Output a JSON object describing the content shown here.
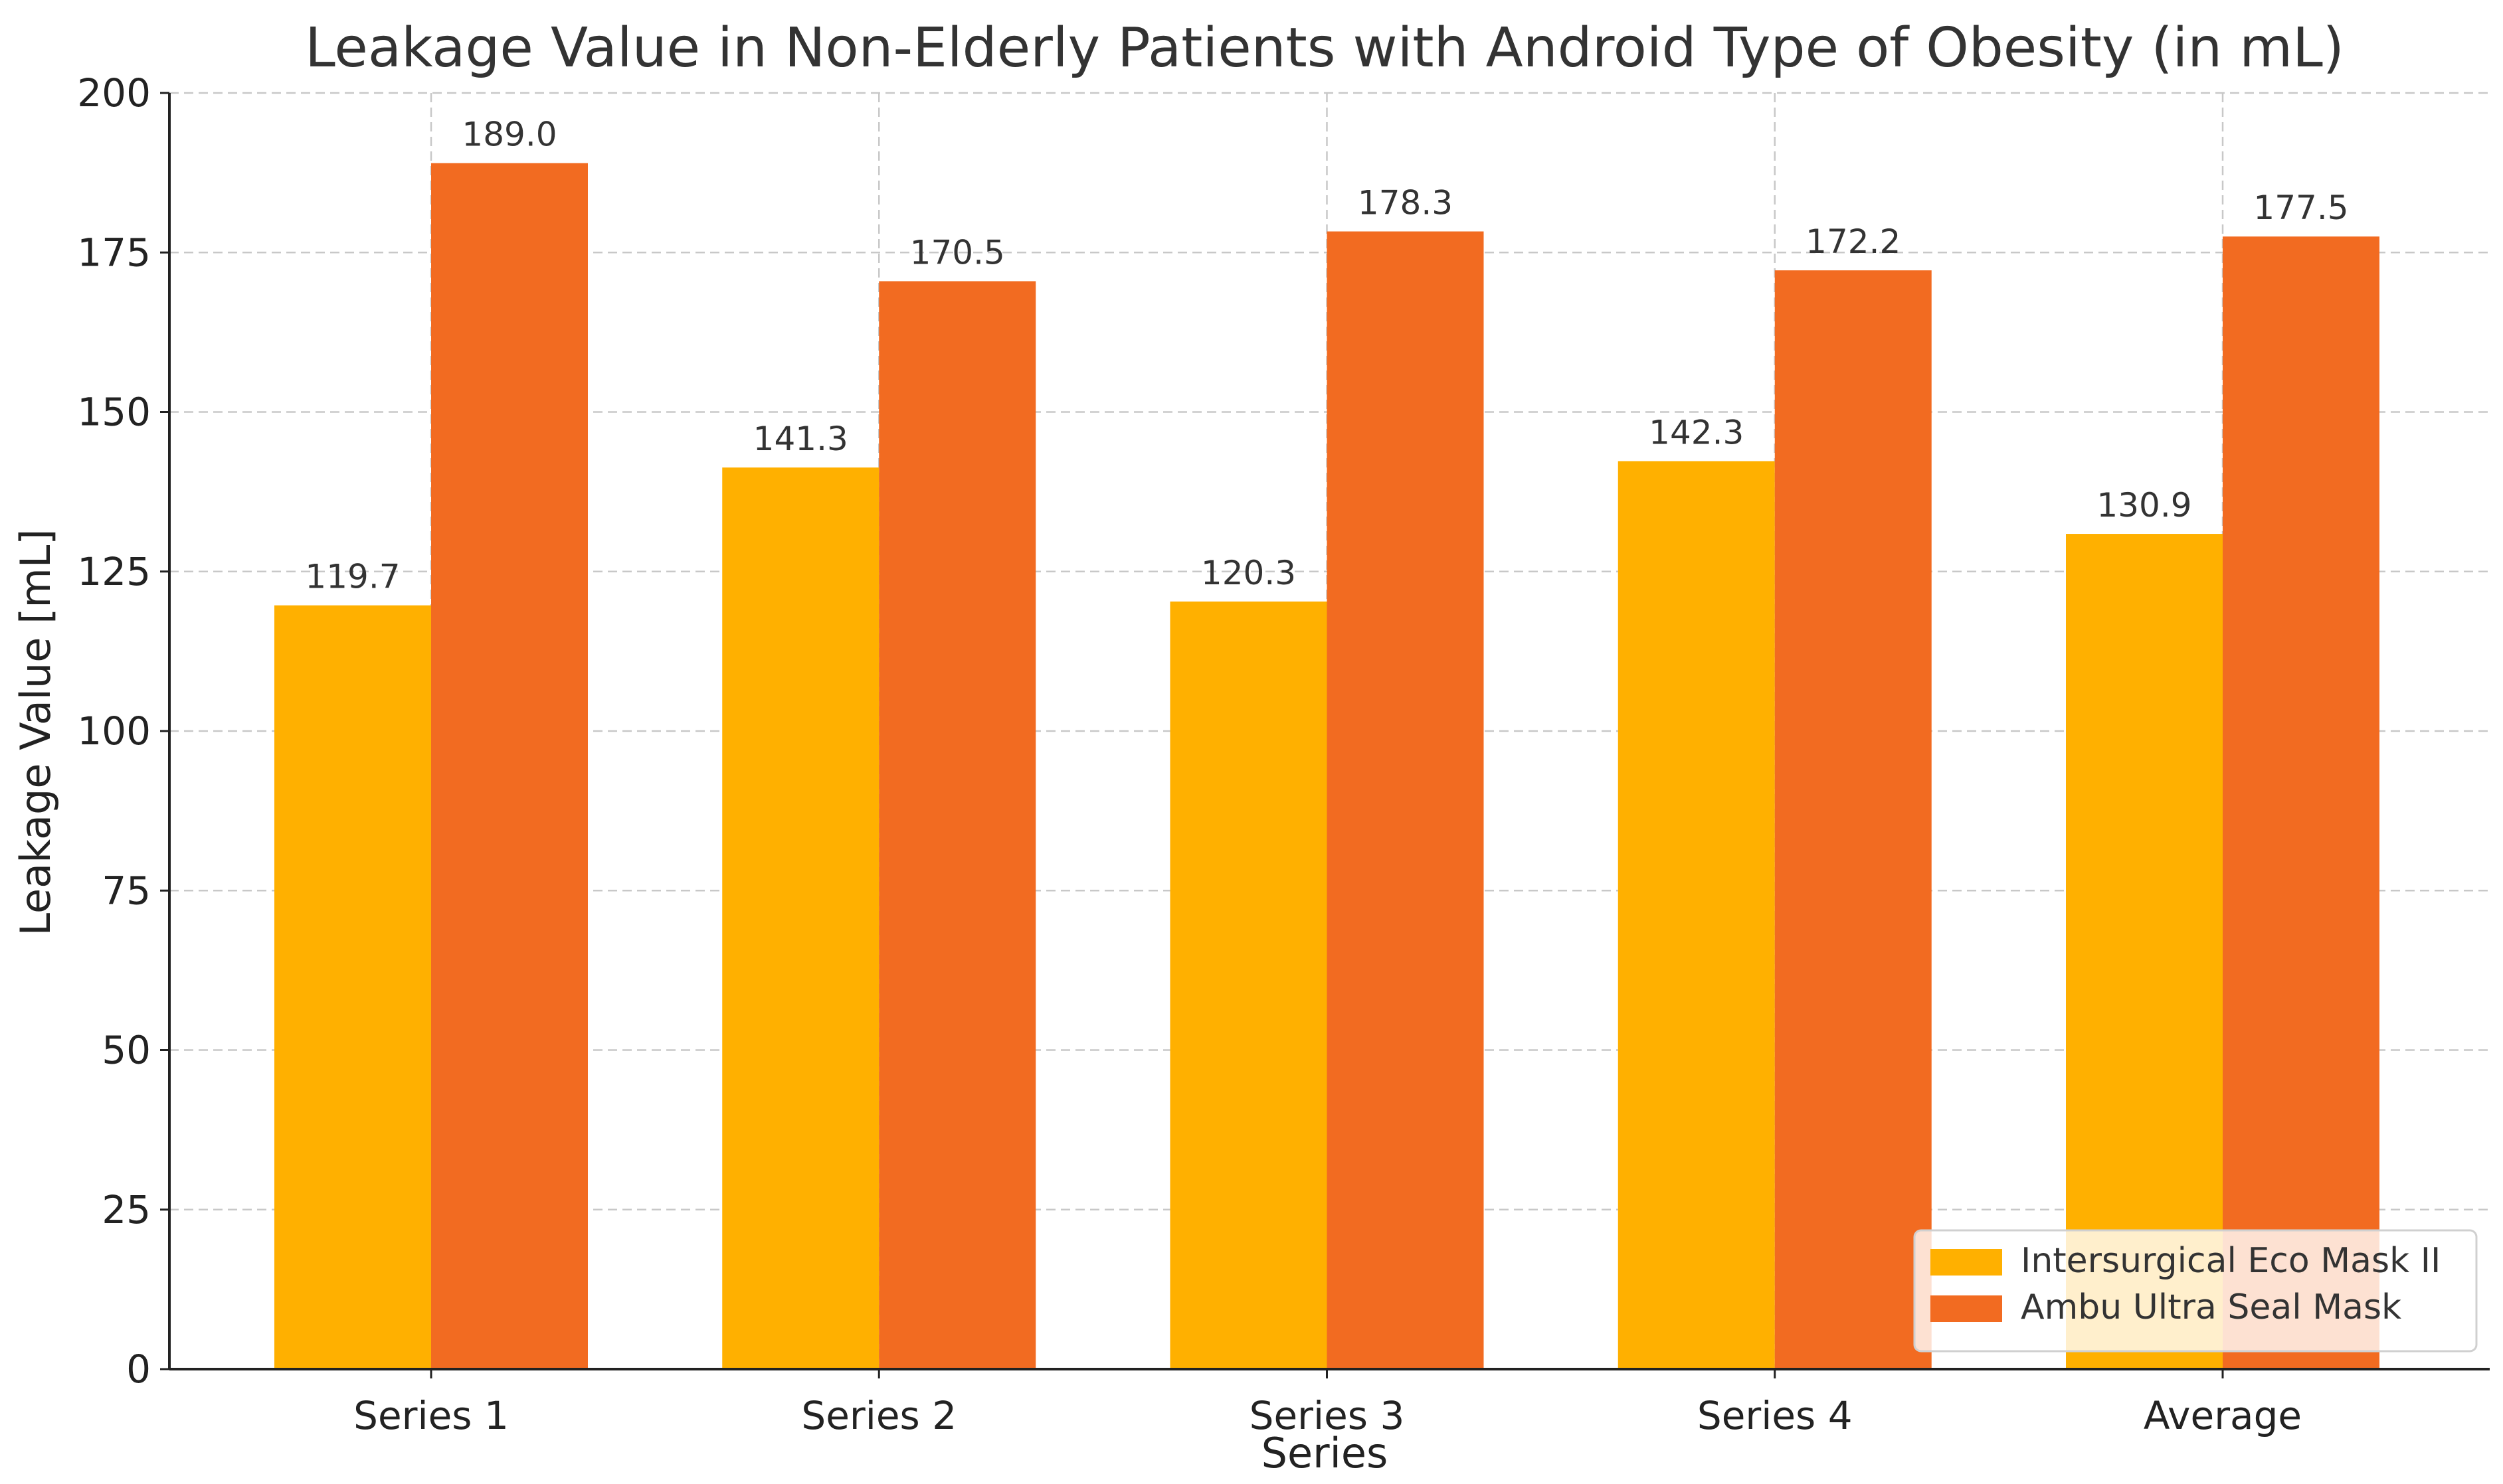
{
  "chart_data": {
    "type": "bar",
    "title": "Leakage Value in Non-Elderly Patients with Android Type of Obesity (in mL)",
    "xlabel": "Series",
    "ylabel": "Leakage Value [mL]",
    "categories": [
      "Series 1",
      "Series 2",
      "Series 3",
      "Series 4",
      "Average"
    ],
    "series": [
      {
        "name": "Intersurgical Eco Mask II",
        "color": "#FFB000",
        "values": [
          119.7,
          141.3,
          120.3,
          142.3,
          130.9
        ],
        "labels": [
          "119.7",
          "141.3",
          "120.3",
          "142.3",
          "130.9"
        ]
      },
      {
        "name": "Ambu Ultra Seal Mask",
        "color": "#F26B21",
        "values": [
          189.0,
          170.5,
          178.3,
          172.2,
          177.5
        ],
        "labels": [
          "189.0",
          "170.5",
          "178.3",
          "172.2",
          "177.5"
        ]
      }
    ],
    "ylim": [
      0,
      200
    ],
    "yticks": [
      "0",
      "25",
      "50",
      "75",
      "100",
      "125",
      "150",
      "175",
      "200"
    ],
    "grid": true,
    "legend_position": "bottom-right"
  }
}
